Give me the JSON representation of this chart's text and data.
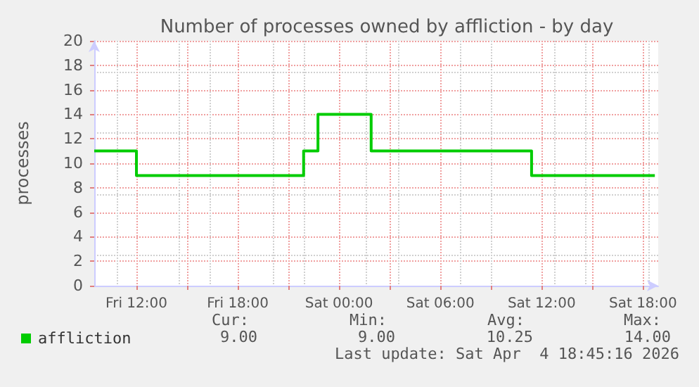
{
  "chart_data": {
    "type": "step",
    "title": "Number of processes owned by affliction - by day",
    "ylabel": "processes",
    "x": [
      "2026-04-03T09:30",
      "2026-04-03T12:00",
      "2026-04-03T21:54",
      "2026-04-03T22:45",
      "2026-04-04T01:54",
      "2026-04-04T11:24",
      "2026-04-04T18:42"
    ],
    "series": [
      {
        "name": "affliction",
        "color": "#00cc00",
        "values": [
          11,
          9,
          11,
          14,
          11,
          9,
          9
        ]
      }
    ],
    "xlim": [
      "2026-04-03T09:30",
      "2026-04-04T18:54"
    ],
    "xticks": [
      {
        "value": "2026-04-03T12:00",
        "label": "Fri 12:00"
      },
      {
        "value": "2026-04-03T18:00",
        "label": "Fri 18:00"
      },
      {
        "value": "2026-04-04T00:00",
        "label": "Sat 00:00"
      },
      {
        "value": "2026-04-04T06:00",
        "label": "Sat 06:00"
      },
      {
        "value": "2026-04-04T12:00",
        "label": "Sat 12:00"
      },
      {
        "value": "2026-04-04T18:00",
        "label": "Sat 18:00"
      }
    ],
    "ylim": [
      0,
      20
    ],
    "yticks": [
      0,
      2,
      4,
      6,
      8,
      10,
      12,
      14,
      16,
      18,
      20
    ],
    "grid": true,
    "legend": "bottom left",
    "marker": "none",
    "line_style": "solid",
    "annotations": [
      "Cur:",
      "Min:",
      "Avg:",
      "Max:",
      "9.00",
      "9.00",
      "10.25",
      "14.00",
      "Last update: Sat Apr  4 18:45:16 2026"
    ]
  }
}
